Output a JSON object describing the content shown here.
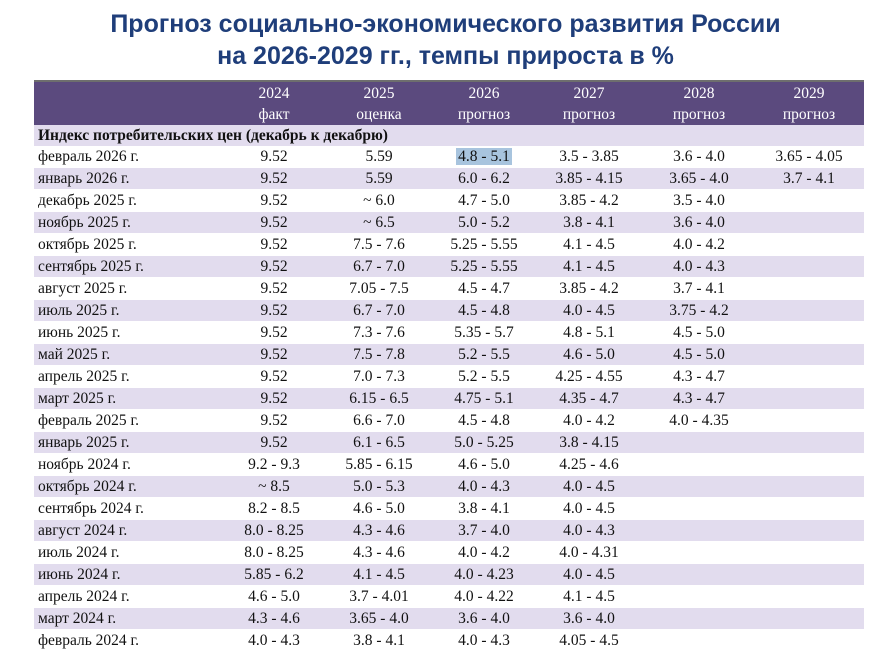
{
  "title": {
    "line1": "Прогноз социально-экономического развития России",
    "line2": "на 2026-2029 гг., темпы прироста в %"
  },
  "table": {
    "headers": [
      {
        "year": "",
        "kind": ""
      },
      {
        "year": "2024",
        "kind": "факт"
      },
      {
        "year": "2025",
        "kind": "оценка"
      },
      {
        "year": "2026",
        "kind": "прогноз"
      },
      {
        "year": "2027",
        "kind": "прогноз"
      },
      {
        "year": "2028",
        "kind": "прогноз"
      },
      {
        "year": "2029",
        "kind": "прогноз"
      }
    ],
    "section_title": "Индекс  потребительских цен (декабрь к декабрю)",
    "highlight_color": "#a8c4de",
    "rows": [
      {
        "label": "февраль 2026 г.",
        "cells": [
          "9.52",
          "5.59",
          "4.8 - 5.1",
          "3.5 - 3.85",
          "3.6 - 4.0",
          "3.65 - 4.05"
        ],
        "highlight": 2
      },
      {
        "label": "январь 2026 г.",
        "cells": [
          "9.52",
          "5.59",
          "6.0 - 6.2",
          "3.85 - 4.15",
          "3.65 - 4.0",
          "3.7 - 4.1"
        ]
      },
      {
        "label": "декабрь 2025 г.",
        "cells": [
          "9.52",
          "~ 6.0",
          "4.7 - 5.0",
          "3.85 - 4.2",
          "3.5 - 4.0",
          ""
        ]
      },
      {
        "label": "ноябрь 2025 г.",
        "cells": [
          "9.52",
          "~ 6.5",
          "5.0 - 5.2",
          "3.8 - 4.1",
          "3.6 - 4.0",
          ""
        ]
      },
      {
        "label": "октябрь 2025 г.",
        "cells": [
          "9.52",
          "7.5 - 7.6",
          "5.25 - 5.55",
          "4.1 - 4.5",
          "4.0 - 4.2",
          ""
        ]
      },
      {
        "label": "сентябрь 2025 г.",
        "cells": [
          "9.52",
          "6.7 - 7.0",
          "5.25 - 5.55",
          "4.1 - 4.5",
          "4.0 - 4.3",
          ""
        ]
      },
      {
        "label": "август 2025 г.",
        "cells": [
          "9.52",
          "7.05 - 7.5",
          "4.5 - 4.7",
          "3.85 - 4.2",
          "3.7 - 4.1",
          ""
        ]
      },
      {
        "label": "июль 2025 г.",
        "cells": [
          "9.52",
          "6.7 - 7.0",
          "4.5 - 4.8",
          "4.0 - 4.5",
          "3.75 - 4.2",
          ""
        ]
      },
      {
        "label": "июнь 2025 г.",
        "cells": [
          "9.52",
          "7.3 - 7.6",
          "5.35 - 5.7",
          "4.8 - 5.1",
          "4.5 - 5.0",
          ""
        ]
      },
      {
        "label": "май 2025 г.",
        "cells": [
          "9.52",
          "7.5 - 7.8",
          "5.2 - 5.5",
          "4.6 - 5.0",
          "4.5 - 5.0",
          ""
        ]
      },
      {
        "label": "апрель 2025 г.",
        "cells": [
          "9.52",
          "7.0 - 7.3",
          "5.2 - 5.5",
          "4.25 - 4.55",
          "4.3 - 4.7",
          ""
        ]
      },
      {
        "label": "март 2025 г.",
        "cells": [
          "9.52",
          "6.15 - 6.5",
          "4.75 - 5.1",
          "4.35 - 4.7",
          "4.3 - 4.7",
          ""
        ]
      },
      {
        "label": "февраль 2025 г.",
        "cells": [
          "9.52",
          "6.6 - 7.0",
          "4.5 - 4.8",
          "4.0 - 4.2",
          "4.0 - 4.35",
          ""
        ]
      },
      {
        "label": "январь 2025 г.",
        "cells": [
          "9.52",
          "6.1 - 6.5",
          "5.0 - 5.25",
          "3.8 - 4.15",
          "",
          ""
        ]
      },
      {
        "label": "ноябрь 2024 г.",
        "cells": [
          "9.2 - 9.3",
          "5.85 - 6.15",
          "4.6 - 5.0",
          "4.25 - 4.6",
          "",
          ""
        ]
      },
      {
        "label": "октябрь 2024 г.",
        "cells": [
          "~ 8.5",
          "5.0 - 5.3",
          "4.0 - 4.3",
          "4.0 - 4.5",
          "",
          ""
        ]
      },
      {
        "label": "сентябрь 2024 г.",
        "cells": [
          "8.2 - 8.5",
          "4.6 - 5.0",
          "3.8 - 4.1",
          "4.0 - 4.5",
          "",
          ""
        ]
      },
      {
        "label": "август 2024 г.",
        "cells": [
          "8.0 - 8.25",
          "4.3 - 4.6",
          "3.7 - 4.0",
          "4.0 - 4.3",
          "",
          ""
        ]
      },
      {
        "label": "июль 2024 г.",
        "cells": [
          "8.0 - 8.25",
          "4.3 - 4.6",
          "4.0 - 4.2",
          "4.0 - 4.31",
          "",
          ""
        ]
      },
      {
        "label": "июнь 2024 г.",
        "cells": [
          "5.85 - 6.2",
          "4.1 - 4.5",
          "4.0 - 4.23",
          "4.0 - 4.5",
          "",
          ""
        ]
      },
      {
        "label": "апрель 2024 г.",
        "cells": [
          "4.6 - 5.0",
          "3.7 - 4.01",
          "4.0 - 4.22",
          "4.1 - 4.5",
          "",
          ""
        ]
      },
      {
        "label": "март 2024 г.",
        "cells": [
          "4.3 - 4.6",
          "3.65 - 4.0",
          "3.6 - 4.0",
          "3.6 - 4.0",
          "",
          ""
        ]
      },
      {
        "label": "февраль 2024 г.",
        "cells": [
          "4.0 - 4.3",
          "3.8 - 4.1",
          "4.0 - 4.3",
          "4.05 - 4.5",
          "",
          ""
        ]
      }
    ]
  }
}
